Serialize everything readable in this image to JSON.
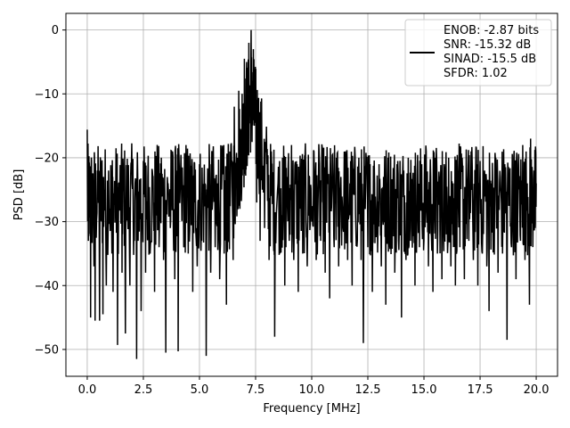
{
  "chart_data": {
    "type": "line",
    "title": "",
    "xlabel": "Frequency [MHz]",
    "ylabel": "PSD [dB]",
    "xlim": [
      -0.95,
      20.95
    ],
    "ylim": [
      -54.2,
      2.6
    ],
    "grid": true,
    "x_ticks": [
      0.0,
      2.5,
      5.0,
      7.5,
      10.0,
      12.5,
      15.0,
      17.5,
      20.0
    ],
    "x_tick_labels": [
      "0.0",
      "2.5",
      "5.0",
      "7.5",
      "10.0",
      "12.5",
      "15.0",
      "17.5",
      "20.0"
    ],
    "y_ticks": [
      0,
      -10,
      -20,
      -30,
      -40,
      -50
    ],
    "y_tick_labels": [
      "0",
      "−10",
      "−20",
      "−30",
      "−40",
      "−50"
    ],
    "legend": {
      "placement": "upper right",
      "entries": [
        {
          "line_color": "#000000",
          "lines": [
            "ENOB: -2.87 bits",
            "SNR: -15.32 dB",
            "SINAD: -15.5 dB",
            "SFDR: 1.02"
          ]
        }
      ]
    },
    "series": [
      {
        "color": "#000000",
        "x_start": 0.0,
        "x_end": 20.0,
        "noise_floor_db": -26.5,
        "noise_spread_db": 5.5,
        "peak": {
          "x": 7.3,
          "y": 0.0
        },
        "min_y": -51.5,
        "points": [
          [
            0.0,
            -15.6
          ],
          [
            0.05,
            -33.0
          ],
          [
            0.1,
            -23.0
          ],
          [
            0.15,
            -45.0
          ],
          [
            0.2,
            -28.0
          ],
          [
            0.3,
            -37.0
          ],
          [
            0.35,
            -45.5
          ],
          [
            0.45,
            -22.0
          ],
          [
            0.55,
            -45.5
          ],
          [
            0.65,
            -30.0
          ],
          [
            0.7,
            -44.5
          ],
          [
            0.75,
            -25.0
          ],
          [
            0.85,
            -40.0
          ],
          [
            0.95,
            -22.0
          ],
          [
            1.1,
            -35.0
          ],
          [
            1.15,
            -41.0
          ],
          [
            1.25,
            -27.0
          ],
          [
            1.35,
            -49.3
          ],
          [
            1.45,
            -26.0
          ],
          [
            1.55,
            -38.0
          ],
          [
            1.6,
            -21.0
          ],
          [
            1.7,
            -47.5
          ],
          [
            1.8,
            -28.0
          ],
          [
            1.9,
            -40.0
          ],
          [
            2.0,
            -24.0
          ],
          [
            2.1,
            -33.0
          ],
          [
            2.2,
            -51.5
          ],
          [
            2.3,
            -28.0
          ],
          [
            2.4,
            -44.0
          ],
          [
            2.5,
            -20.5
          ],
          [
            2.6,
            -38.0
          ],
          [
            2.7,
            -23.0
          ],
          [
            2.8,
            -35.0
          ],
          [
            2.9,
            -22.0
          ],
          [
            3.0,
            -41.0
          ],
          [
            3.1,
            -27.0
          ],
          [
            3.2,
            -34.0
          ],
          [
            3.3,
            -20.0
          ],
          [
            3.4,
            -36.0
          ],
          [
            3.5,
            -50.5
          ],
          [
            3.6,
            -24.0
          ],
          [
            3.7,
            -31.0
          ],
          [
            3.8,
            -19.0
          ],
          [
            3.9,
            -39.0
          ],
          [
            4.0,
            -22.0
          ],
          [
            4.05,
            -50.3
          ],
          [
            4.2,
            -25.0
          ],
          [
            4.3,
            -34.0
          ],
          [
            4.4,
            -18.0
          ],
          [
            4.5,
            -35.0
          ],
          [
            4.6,
            -22.0
          ],
          [
            4.7,
            -41.0
          ],
          [
            4.8,
            -27.0
          ],
          [
            4.9,
            -37.0
          ],
          [
            5.0,
            -21.0
          ],
          [
            5.1,
            -33.0
          ],
          [
            5.2,
            -25.0
          ],
          [
            5.3,
            -51.0
          ],
          [
            5.4,
            -23.0
          ],
          [
            5.5,
            -38.0
          ],
          [
            5.6,
            -20.0
          ],
          [
            5.7,
            -34.0
          ],
          [
            5.8,
            -24.0
          ],
          [
            5.9,
            -39.0
          ],
          [
            6.0,
            -22.0
          ],
          [
            6.1,
            -35.0
          ],
          [
            6.2,
            -43.0
          ],
          [
            6.25,
            -21.0
          ],
          [
            6.3,
            -29.0
          ],
          [
            6.4,
            -18.0
          ],
          [
            6.5,
            -36.0
          ],
          [
            6.55,
            -12.0
          ],
          [
            6.6,
            -24.0
          ],
          [
            6.7,
            -20.0
          ],
          [
            6.75,
            -9.5
          ],
          [
            6.8,
            -28.0
          ],
          [
            6.9,
            -10.0
          ],
          [
            6.95,
            -19.0
          ],
          [
            7.0,
            -4.5
          ],
          [
            7.05,
            -14.0
          ],
          [
            7.1,
            -5.0
          ],
          [
            7.15,
            -15.0
          ],
          [
            7.2,
            -2.0
          ],
          [
            7.25,
            -10.0
          ],
          [
            7.3,
            0.0
          ],
          [
            7.35,
            -8.0
          ],
          [
            7.4,
            -3.0
          ],
          [
            7.45,
            -12.0
          ],
          [
            7.5,
            -9.0
          ],
          [
            7.55,
            -27.0
          ],
          [
            7.6,
            -14.0
          ],
          [
            7.7,
            -33.0
          ],
          [
            7.8,
            -25.0
          ],
          [
            7.9,
            -31.0
          ],
          [
            8.0,
            -21.0
          ],
          [
            8.1,
            -36.0
          ],
          [
            8.2,
            -19.0
          ],
          [
            8.3,
            -33.0
          ],
          [
            8.35,
            -48.0
          ],
          [
            8.5,
            -24.0
          ],
          [
            8.6,
            -34.0
          ],
          [
            8.7,
            -20.0
          ],
          [
            8.8,
            -40.0
          ],
          [
            8.9,
            -23.0
          ],
          [
            9.0,
            -33.0
          ],
          [
            9.1,
            -18.0
          ],
          [
            9.2,
            -36.0
          ],
          [
            9.3,
            -22.0
          ],
          [
            9.4,
            -41.0
          ],
          [
            9.5,
            -25.0
          ],
          [
            9.6,
            -35.0
          ],
          [
            9.7,
            -20.0
          ],
          [
            9.8,
            -37.0
          ],
          [
            9.9,
            -23.0
          ],
          [
            10.0,
            -30.0
          ],
          [
            10.1,
            -19.0
          ],
          [
            10.2,
            -36.0
          ],
          [
            10.3,
            -24.0
          ],
          [
            10.4,
            -33.0
          ],
          [
            10.5,
            -20.5
          ],
          [
            10.6,
            -38.0
          ],
          [
            10.7,
            -22.0
          ],
          [
            10.8,
            -42.0
          ],
          [
            10.9,
            -25.0
          ],
          [
            11.0,
            -34.0
          ],
          [
            11.1,
            -20.0
          ],
          [
            11.2,
            -37.0
          ],
          [
            11.3,
            -23.0
          ],
          [
            11.4,
            -31.0
          ],
          [
            11.5,
            -19.0
          ],
          [
            11.6,
            -36.0
          ],
          [
            11.7,
            -24.0
          ],
          [
            11.8,
            -40.0
          ],
          [
            11.9,
            -22.0
          ],
          [
            12.0,
            -33.0
          ],
          [
            12.1,
            -20.0
          ],
          [
            12.2,
            -36.0
          ],
          [
            12.3,
            -49.0
          ],
          [
            12.4,
            -25.0
          ],
          [
            12.5,
            -34.0
          ],
          [
            12.6,
            -21.0
          ],
          [
            12.7,
            -41.0
          ],
          [
            12.8,
            -24.0
          ],
          [
            12.9,
            -32.0
          ],
          [
            13.0,
            -21.0
          ],
          [
            13.1,
            -37.0
          ],
          [
            13.2,
            -23.0
          ],
          [
            13.3,
            -43.0
          ],
          [
            13.4,
            -20.0
          ],
          [
            13.5,
            -34.0
          ],
          [
            13.6,
            -24.0
          ],
          [
            13.7,
            -38.0
          ],
          [
            13.8,
            -21.0
          ],
          [
            13.9,
            -31.0
          ],
          [
            14.0,
            -45.0
          ],
          [
            14.1,
            -22.0
          ],
          [
            14.2,
            -36.0
          ],
          [
            14.3,
            -20.0
          ],
          [
            14.4,
            -33.0
          ],
          [
            14.5,
            -24.0
          ],
          [
            14.6,
            -40.0
          ],
          [
            14.7,
            -22.0
          ],
          [
            14.8,
            -34.0
          ],
          [
            14.9,
            -21.0
          ],
          [
            15.0,
            -33.0
          ],
          [
            15.1,
            -19.0
          ],
          [
            15.2,
            -37.0
          ],
          [
            15.3,
            -23.0
          ],
          [
            15.4,
            -41.0
          ],
          [
            15.5,
            -20.0
          ],
          [
            15.6,
            -35.0
          ],
          [
            15.7,
            -23.0
          ],
          [
            15.8,
            -39.0
          ],
          [
            15.9,
            -21.0
          ],
          [
            16.0,
            -32.0
          ],
          [
            16.1,
            -20.0
          ],
          [
            16.2,
            -37.0
          ],
          [
            16.3,
            -24.0
          ],
          [
            16.4,
            -40.0
          ],
          [
            16.5,
            -22.0
          ],
          [
            16.6,
            -34.0
          ],
          [
            16.7,
            -20.0
          ],
          [
            16.8,
            -39.0
          ],
          [
            16.9,
            -23.0
          ],
          [
            17.0,
            -33.0
          ],
          [
            17.1,
            -19.0
          ],
          [
            17.2,
            -36.0
          ],
          [
            17.3,
            -23.0
          ],
          [
            17.4,
            -40.0
          ],
          [
            17.5,
            -20.5
          ],
          [
            17.6,
            -35.0
          ],
          [
            17.7,
            -22.0
          ],
          [
            17.8,
            -37.0
          ],
          [
            17.9,
            -44.0
          ],
          [
            18.0,
            -24.0
          ],
          [
            18.1,
            -31.0
          ],
          [
            18.2,
            -20.0
          ],
          [
            18.3,
            -38.0
          ],
          [
            18.4,
            -23.0
          ],
          [
            18.5,
            -35.0
          ],
          [
            18.6,
            -21.0
          ],
          [
            18.7,
            -48.5
          ],
          [
            18.8,
            -25.0
          ],
          [
            18.9,
            -34.0
          ],
          [
            19.0,
            -20.0
          ],
          [
            19.1,
            -39.0
          ],
          [
            19.2,
            -21.0
          ],
          [
            19.3,
            -33.0
          ],
          [
            19.4,
            -18.0
          ],
          [
            19.5,
            -36.0
          ],
          [
            19.6,
            -24.0
          ],
          [
            19.7,
            -43.0
          ],
          [
            19.75,
            -17.0
          ],
          [
            19.8,
            -29.0
          ],
          [
            19.9,
            -22.0
          ],
          [
            19.95,
            -31.0
          ],
          [
            20.0,
            -24.0
          ]
        ]
      }
    ]
  }
}
